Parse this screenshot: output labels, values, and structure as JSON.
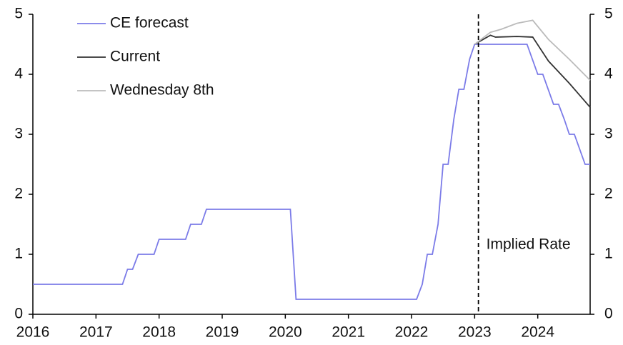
{
  "chart_data": {
    "type": "line",
    "xlim": [
      2016,
      2024.83
    ],
    "xticks": [
      2016,
      2017,
      2018,
      2019,
      2020,
      2021,
      2022,
      2023,
      2024
    ],
    "ylim": [
      0,
      5
    ],
    "yticks": [
      0,
      1,
      2,
      3,
      4,
      5
    ],
    "y2lim": [
      0,
      5
    ],
    "y2ticks": [
      0,
      1,
      2,
      3,
      4,
      5
    ],
    "legend": "upper left",
    "annotation": {
      "text": "Implied Rate",
      "x": 2023.06
    },
    "series": [
      {
        "name": "CE forecast",
        "color": "#7b7be8",
        "x": [
          2016.0,
          2017.42,
          2017.5,
          2017.58,
          2017.67,
          2017.92,
          2018.0,
          2018.42,
          2018.5,
          2018.67,
          2018.75,
          2020.08,
          2020.17,
          2022.08,
          2022.17,
          2022.25,
          2022.33,
          2022.42,
          2022.5,
          2022.58,
          2022.67,
          2022.75,
          2022.83,
          2022.92,
          2023.0,
          2023.83,
          2024.0,
          2024.08,
          2024.25,
          2024.33,
          2024.42,
          2024.5,
          2024.58,
          2024.75,
          2024.83
        ],
        "values": [
          0.5,
          0.5,
          0.75,
          0.75,
          1.0,
          1.0,
          1.25,
          1.25,
          1.5,
          1.5,
          1.75,
          1.75,
          0.25,
          0.25,
          0.5,
          1.0,
          1.0,
          1.5,
          2.5,
          2.5,
          3.25,
          3.75,
          3.75,
          4.25,
          4.5,
          4.5,
          4.0,
          4.0,
          3.5,
          3.5,
          3.25,
          3.0,
          3.0,
          2.5,
          2.5
        ]
      },
      {
        "name": "Current",
        "color": "#333333",
        "x": [
          2023.0,
          2023.25,
          2023.33,
          2023.67,
          2023.92,
          2024.17,
          2024.5,
          2024.83
        ],
        "values": [
          4.5,
          4.65,
          4.62,
          4.63,
          4.62,
          4.22,
          3.85,
          3.45
        ]
      },
      {
        "name": "Wednesday 8th",
        "color": "#bbbbbb",
        "x": [
          2023.0,
          2023.25,
          2023.42,
          2023.67,
          2023.92,
          2024.17,
          2024.5,
          2024.83
        ],
        "values": [
          4.5,
          4.7,
          4.75,
          4.85,
          4.9,
          4.58,
          4.25,
          3.9
        ]
      }
    ]
  }
}
